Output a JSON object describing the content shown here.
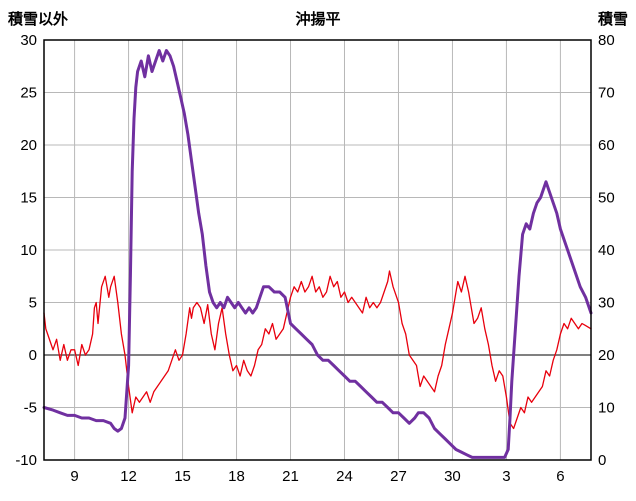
{
  "header": {
    "title": "沖揚平",
    "left_axis_label": "積雪以外",
    "right_axis_label": "積雪"
  },
  "colors": {
    "temperature_line": "#e8000d",
    "snow_line": "#7030a0",
    "grid": "#b8b8b8",
    "zero_line": "#808080",
    "border": "#000000",
    "tick_text": "#000000"
  },
  "chart_data": {
    "type": "line",
    "title": "沖揚平",
    "xlim": [
      7.3,
      37.7
    ],
    "x_tick_values": [
      9,
      12,
      15,
      18,
      21,
      24,
      27,
      30,
      33,
      36
    ],
    "x_tick_labels": [
      "9",
      "12",
      "15",
      "18",
      "21",
      "24",
      "27",
      "30",
      "3",
      "6"
    ],
    "left_ylim": [
      -10,
      30
    ],
    "left_ticks": [
      -10,
      -5,
      0,
      5,
      10,
      15,
      20,
      25,
      30
    ],
    "right_ylim": [
      0,
      80
    ],
    "right_ticks": [
      0,
      10,
      20,
      30,
      40,
      50,
      60,
      70,
      80
    ],
    "grid": true,
    "series": [
      {
        "name": "積雪以外",
        "axis": "left",
        "color": "#e8000d",
        "width": 1.3,
        "points": [
          [
            7.3,
            4
          ],
          [
            7.4,
            2.5
          ],
          [
            7.5,
            2
          ],
          [
            7.7,
            1
          ],
          [
            7.8,
            0.5
          ],
          [
            8,
            1.5
          ],
          [
            8.2,
            -0.5
          ],
          [
            8.4,
            1
          ],
          [
            8.6,
            -0.5
          ],
          [
            8.8,
            0.5
          ],
          [
            9,
            0.5
          ],
          [
            9.2,
            -1
          ],
          [
            9.4,
            1
          ],
          [
            9.6,
            0
          ],
          [
            9.8,
            0.5
          ],
          [
            10,
            2
          ],
          [
            10.1,
            4.5
          ],
          [
            10.2,
            5
          ],
          [
            10.3,
            3
          ],
          [
            10.5,
            6.5
          ],
          [
            10.7,
            7.5
          ],
          [
            10.9,
            5.5
          ],
          [
            11,
            6.5
          ],
          [
            11.2,
            7.5
          ],
          [
            11.4,
            5
          ],
          [
            11.6,
            2
          ],
          [
            11.8,
            0
          ],
          [
            12,
            -3
          ],
          [
            12.2,
            -5.5
          ],
          [
            12.4,
            -4
          ],
          [
            12.6,
            -4.5
          ],
          [
            12.8,
            -4
          ],
          [
            13,
            -3.5
          ],
          [
            13.2,
            -4.5
          ],
          [
            13.4,
            -3.5
          ],
          [
            13.6,
            -3
          ],
          [
            13.8,
            -2.5
          ],
          [
            14,
            -2
          ],
          [
            14.2,
            -1.5
          ],
          [
            14.4,
            -0.5
          ],
          [
            14.6,
            0.5
          ],
          [
            14.8,
            -0.5
          ],
          [
            15,
            0
          ],
          [
            15.2,
            2
          ],
          [
            15.4,
            4.5
          ],
          [
            15.5,
            3.5
          ],
          [
            15.6,
            4.5
          ],
          [
            15.8,
            5
          ],
          [
            16,
            4.5
          ],
          [
            16.2,
            3
          ],
          [
            16.4,
            4.8
          ],
          [
            16.6,
            2
          ],
          [
            16.8,
            0.5
          ],
          [
            17,
            3
          ],
          [
            17.2,
            4.5
          ],
          [
            17.4,
            2
          ],
          [
            17.6,
            0
          ],
          [
            17.8,
            -1.5
          ],
          [
            18,
            -1
          ],
          [
            18.2,
            -2
          ],
          [
            18.4,
            -0.5
          ],
          [
            18.6,
            -1.5
          ],
          [
            18.8,
            -2
          ],
          [
            19,
            -1
          ],
          [
            19.2,
            0.5
          ],
          [
            19.4,
            1
          ],
          [
            19.6,
            2.5
          ],
          [
            19.8,
            2
          ],
          [
            20,
            3
          ],
          [
            20.2,
            1.5
          ],
          [
            20.4,
            2
          ],
          [
            20.6,
            2.5
          ],
          [
            20.8,
            4
          ],
          [
            21,
            5.5
          ],
          [
            21.2,
            6.5
          ],
          [
            21.4,
            6
          ],
          [
            21.6,
            7
          ],
          [
            21.8,
            6
          ],
          [
            22,
            6.5
          ],
          [
            22.2,
            7.5
          ],
          [
            22.4,
            6
          ],
          [
            22.6,
            6.5
          ],
          [
            22.8,
            5.5
          ],
          [
            23,
            6
          ],
          [
            23.2,
            7.5
          ],
          [
            23.4,
            6.5
          ],
          [
            23.6,
            7
          ],
          [
            23.8,
            5.5
          ],
          [
            24,
            6
          ],
          [
            24.2,
            5
          ],
          [
            24.4,
            5.5
          ],
          [
            24.6,
            5
          ],
          [
            24.8,
            4.5
          ],
          [
            25,
            4
          ],
          [
            25.2,
            5.5
          ],
          [
            25.4,
            4.5
          ],
          [
            25.6,
            5
          ],
          [
            25.8,
            4.5
          ],
          [
            26,
            5
          ],
          [
            26.2,
            6
          ],
          [
            26.4,
            7
          ],
          [
            26.5,
            8
          ],
          [
            26.7,
            6.5
          ],
          [
            27,
            5
          ],
          [
            27.2,
            3
          ],
          [
            27.4,
            2
          ],
          [
            27.6,
            0
          ],
          [
            27.8,
            -0.5
          ],
          [
            28,
            -1
          ],
          [
            28.2,
            -3
          ],
          [
            28.4,
            -2
          ],
          [
            28.6,
            -2.5
          ],
          [
            28.8,
            -3
          ],
          [
            29,
            -3.5
          ],
          [
            29.2,
            -2
          ],
          [
            29.4,
            -1
          ],
          [
            29.6,
            1
          ],
          [
            29.8,
            2.5
          ],
          [
            30,
            4
          ],
          [
            30.2,
            6
          ],
          [
            30.3,
            7
          ],
          [
            30.5,
            6
          ],
          [
            30.7,
            7.5
          ],
          [
            30.9,
            6
          ],
          [
            31,
            5
          ],
          [
            31.2,
            3
          ],
          [
            31.4,
            3.5
          ],
          [
            31.6,
            4.5
          ],
          [
            31.8,
            2.5
          ],
          [
            32,
            1
          ],
          [
            32.2,
            -1
          ],
          [
            32.4,
            -2.5
          ],
          [
            32.6,
            -1.5
          ],
          [
            32.8,
            -2
          ],
          [
            33,
            -4
          ],
          [
            33.2,
            -6.5
          ],
          [
            33.4,
            -7
          ],
          [
            33.6,
            -6
          ],
          [
            33.8,
            -5
          ],
          [
            34,
            -5.5
          ],
          [
            34.2,
            -4
          ],
          [
            34.4,
            -4.5
          ],
          [
            34.6,
            -4
          ],
          [
            34.8,
            -3.5
          ],
          [
            35,
            -3
          ],
          [
            35.2,
            -1.5
          ],
          [
            35.4,
            -2
          ],
          [
            35.6,
            -0.5
          ],
          [
            35.8,
            0.5
          ],
          [
            36,
            2
          ],
          [
            36.2,
            3
          ],
          [
            36.4,
            2.5
          ],
          [
            36.6,
            3.5
          ],
          [
            36.8,
            3
          ],
          [
            37,
            2.5
          ],
          [
            37.2,
            3
          ],
          [
            37.4,
            2.8
          ],
          [
            37.7,
            2.5
          ]
        ]
      },
      {
        "name": "積雪",
        "axis": "right",
        "color": "#7030a0",
        "width": 3,
        "points": [
          [
            7.3,
            10
          ],
          [
            7.8,
            9.5
          ],
          [
            8.2,
            9
          ],
          [
            8.6,
            8.5
          ],
          [
            9,
            8.5
          ],
          [
            9.4,
            8
          ],
          [
            9.8,
            8
          ],
          [
            10.2,
            7.5
          ],
          [
            10.6,
            7.5
          ],
          [
            11,
            7
          ],
          [
            11.2,
            6
          ],
          [
            11.4,
            5.5
          ],
          [
            11.6,
            6
          ],
          [
            11.8,
            8
          ],
          [
            12,
            18
          ],
          [
            12.1,
            35
          ],
          [
            12.2,
            55
          ],
          [
            12.3,
            65
          ],
          [
            12.4,
            71
          ],
          [
            12.5,
            74
          ],
          [
            12.7,
            76
          ],
          [
            12.9,
            73
          ],
          [
            13.1,
            77
          ],
          [
            13.3,
            74
          ],
          [
            13.5,
            76
          ],
          [
            13.7,
            78
          ],
          [
            13.9,
            76
          ],
          [
            14.1,
            78
          ],
          [
            14.3,
            77
          ],
          [
            14.5,
            75
          ],
          [
            14.7,
            72
          ],
          [
            14.9,
            69
          ],
          [
            15.1,
            66
          ],
          [
            15.3,
            62
          ],
          [
            15.5,
            57
          ],
          [
            15.7,
            52
          ],
          [
            15.9,
            47
          ],
          [
            16.1,
            43
          ],
          [
            16.3,
            37
          ],
          [
            16.5,
            32
          ],
          [
            16.7,
            30
          ],
          [
            16.9,
            29
          ],
          [
            17.1,
            30
          ],
          [
            17.3,
            29
          ],
          [
            17.5,
            31
          ],
          [
            17.7,
            30
          ],
          [
            17.9,
            29
          ],
          [
            18.1,
            30
          ],
          [
            18.3,
            29
          ],
          [
            18.5,
            28
          ],
          [
            18.7,
            29
          ],
          [
            18.9,
            28
          ],
          [
            19.1,
            29
          ],
          [
            19.3,
            31
          ],
          [
            19.5,
            33
          ],
          [
            19.8,
            33
          ],
          [
            20.1,
            32
          ],
          [
            20.4,
            32
          ],
          [
            20.7,
            31
          ],
          [
            21,
            26
          ],
          [
            21.3,
            25
          ],
          [
            21.6,
            24
          ],
          [
            21.9,
            23
          ],
          [
            22.2,
            22
          ],
          [
            22.5,
            20
          ],
          [
            22.8,
            19
          ],
          [
            23.1,
            19
          ],
          [
            23.4,
            18
          ],
          [
            23.7,
            17
          ],
          [
            24,
            16
          ],
          [
            24.3,
            15
          ],
          [
            24.6,
            15
          ],
          [
            24.9,
            14
          ],
          [
            25.2,
            13
          ],
          [
            25.5,
            12
          ],
          [
            25.8,
            11
          ],
          [
            26.1,
            11
          ],
          [
            26.4,
            10
          ],
          [
            26.7,
            9
          ],
          [
            27,
            9
          ],
          [
            27.3,
            8
          ],
          [
            27.6,
            7
          ],
          [
            27.9,
            8
          ],
          [
            28.1,
            9
          ],
          [
            28.4,
            9
          ],
          [
            28.7,
            8
          ],
          [
            29,
            6
          ],
          [
            29.3,
            5
          ],
          [
            29.6,
            4
          ],
          [
            29.9,
            3
          ],
          [
            30.2,
            2
          ],
          [
            30.5,
            1.5
          ],
          [
            30.8,
            1
          ],
          [
            31.1,
            0.5
          ],
          [
            31.5,
            0.5
          ],
          [
            32,
            0.5
          ],
          [
            32.5,
            0.5
          ],
          [
            32.9,
            0.5
          ],
          [
            33.1,
            2
          ],
          [
            33.2,
            8
          ],
          [
            33.3,
            15
          ],
          [
            33.5,
            25
          ],
          [
            33.7,
            35
          ],
          [
            33.9,
            43
          ],
          [
            34.1,
            45
          ],
          [
            34.3,
            44
          ],
          [
            34.5,
            47
          ],
          [
            34.7,
            49
          ],
          [
            34.9,
            50
          ],
          [
            35.1,
            52
          ],
          [
            35.2,
            53
          ],
          [
            35.4,
            51
          ],
          [
            35.6,
            49
          ],
          [
            35.8,
            47
          ],
          [
            36,
            44
          ],
          [
            36.2,
            42
          ],
          [
            36.5,
            39
          ],
          [
            36.8,
            36
          ],
          [
            37.1,
            33
          ],
          [
            37.4,
            31
          ],
          [
            37.7,
            28
          ]
        ]
      }
    ]
  }
}
